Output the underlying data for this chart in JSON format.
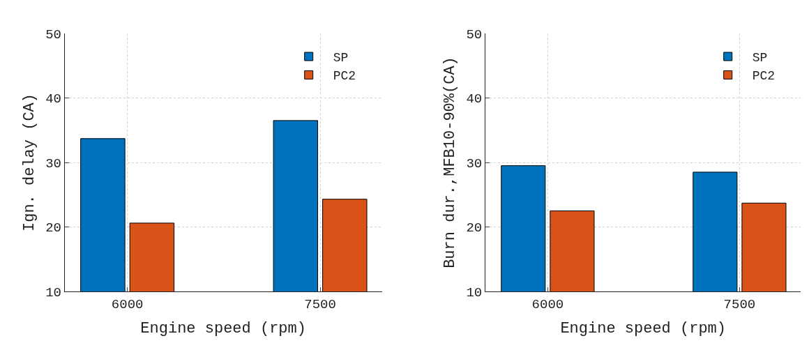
{
  "chart_data": [
    {
      "type": "bar",
      "categories": [
        "6000",
        "7500"
      ],
      "xlabel": "Engine speed (rpm)",
      "ylabel": "Ign. delay (CA)",
      "ylim": [
        10,
        50
      ],
      "yticks": [
        10,
        20,
        30,
        40,
        50
      ],
      "grid": true,
      "legend": "top right",
      "series": [
        {
          "name": "SP",
          "color": "#0072bd",
          "values": [
            33.7,
            36.5
          ]
        },
        {
          "name": "PC2",
          "color": "#d95319",
          "values": [
            20.6,
            24.3
          ]
        }
      ]
    },
    {
      "type": "bar",
      "categories": [
        "6000",
        "7500"
      ],
      "xlabel": "Engine speed (rpm)",
      "ylabel": "Burn dur.,MFB10-90%(CA)",
      "ylim": [
        10,
        50
      ],
      "yticks": [
        10,
        20,
        30,
        40,
        50
      ],
      "grid": true,
      "legend": "top right",
      "series": [
        {
          "name": "SP",
          "color": "#0072bd",
          "values": [
            29.5,
            28.5
          ]
        },
        {
          "name": "PC2",
          "color": "#d95319",
          "values": [
            22.5,
            23.7
          ]
        }
      ]
    }
  ]
}
